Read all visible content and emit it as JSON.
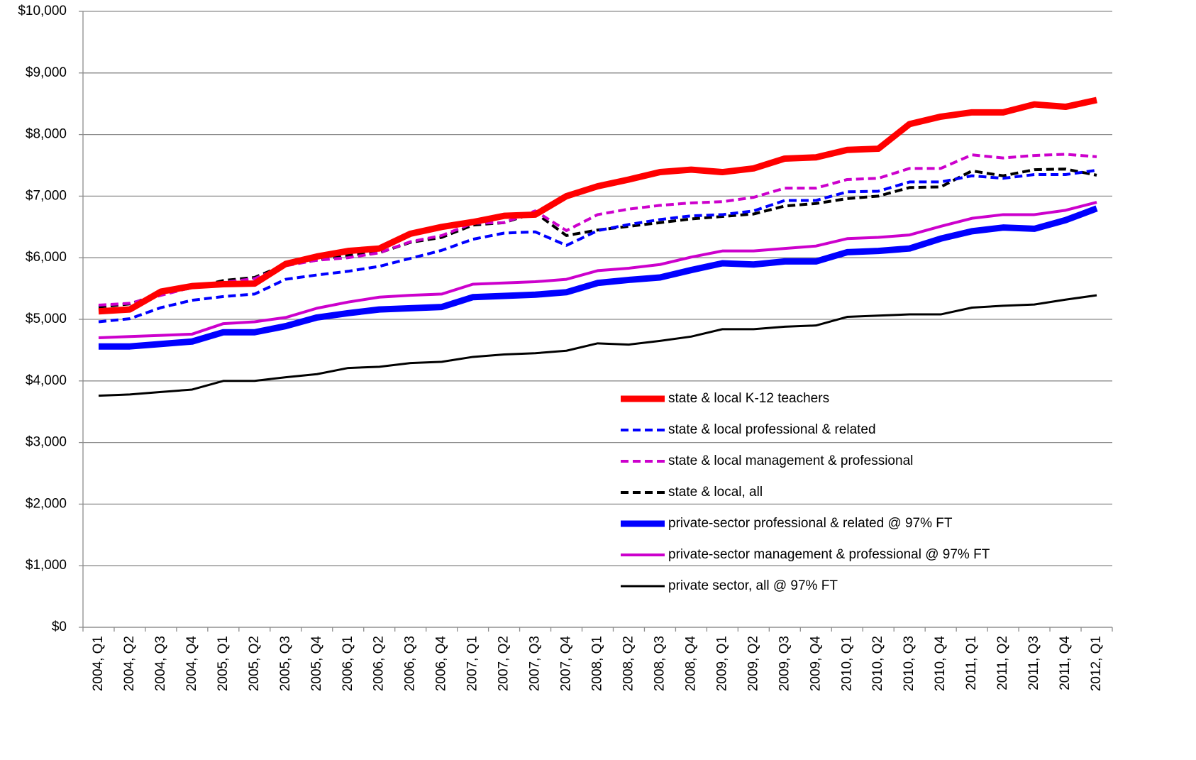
{
  "chart_data": {
    "type": "line",
    "categories": [
      "2004, Q1",
      "2004, Q2",
      "2004, Q3",
      "2004, Q4",
      "2005, Q1",
      "2005, Q2",
      "2005, Q3",
      "2005, Q4",
      "2006, Q1",
      "2006, Q2",
      "2006, Q3",
      "2006, Q4",
      "2007, Q1",
      "2007, Q2",
      "2007, Q3",
      "2007, Q4",
      "2008, Q1",
      "2008, Q2",
      "2008, Q3",
      "2008, Q4",
      "2009, Q1",
      "2009, Q2",
      "2009, Q3",
      "2009, Q4",
      "2010, Q1",
      "2010, Q2",
      "2010, Q3",
      "2010, Q4",
      "2011, Q1",
      "2011, Q2",
      "2011, Q3",
      "2011, Q4",
      "2012, Q1"
    ],
    "series": [
      {
        "name": "state & local K-12 teachers",
        "color": "#ff0000",
        "style": "thick",
        "values": [
          5130,
          5160,
          5450,
          5540,
          5570,
          5580,
          5900,
          6020,
          6110,
          6150,
          6390,
          6500,
          6580,
          6680,
          6700,
          7000,
          7160,
          7270,
          7390,
          7430,
          7390,
          7450,
          7610,
          7630,
          7750,
          7770,
          8170,
          8290,
          8360,
          8360,
          8490,
          8450,
          8560
        ]
      },
      {
        "name": "state & local professional & related",
        "color": "#0000ff",
        "style": "dashed",
        "values": [
          4960,
          5010,
          5190,
          5310,
          5370,
          5410,
          5650,
          5720,
          5780,
          5860,
          5990,
          6120,
          6300,
          6400,
          6420,
          6200,
          6440,
          6540,
          6620,
          6680,
          6700,
          6760,
          6930,
          6930,
          7070,
          7080,
          7230,
          7230,
          7330,
          7290,
          7350,
          7350,
          7420
        ]
      },
      {
        "name": "state & local management  & professional",
        "color": "#cc00cc",
        "style": "dashed",
        "values": [
          5230,
          5260,
          5390,
          5520,
          5600,
          5660,
          5870,
          5960,
          6000,
          6080,
          6260,
          6360,
          6560,
          6570,
          6760,
          6440,
          6700,
          6790,
          6850,
          6890,
          6910,
          6980,
          7130,
          7130,
          7270,
          7290,
          7450,
          7450,
          7670,
          7620,
          7660,
          7680,
          7640
        ]
      },
      {
        "name": "state & local, all",
        "color": "#000000",
        "style": "dashed",
        "values": [
          5200,
          5250,
          5420,
          5510,
          5630,
          5680,
          5890,
          5960,
          6040,
          6080,
          6250,
          6330,
          6530,
          6570,
          6730,
          6360,
          6450,
          6510,
          6570,
          6630,
          6670,
          6710,
          6840,
          6880,
          6960,
          7000,
          7140,
          7150,
          7410,
          7330,
          7430,
          7440,
          7340
        ]
      },
      {
        "name": "private-sector professional & related @ 97%  FT",
        "color": "#0000ff",
        "style": "thick",
        "values": [
          4560,
          4560,
          4600,
          4640,
          4790,
          4790,
          4890,
          5030,
          5100,
          5160,
          5180,
          5200,
          5360,
          5380,
          5400,
          5440,
          5590,
          5640,
          5680,
          5800,
          5910,
          5890,
          5940,
          5940,
          6090,
          6110,
          6150,
          6310,
          6430,
          6490,
          6470,
          6610,
          6800
        ]
      },
      {
        "name": "private-sector management  & professional @ 97%  FT",
        "color": "#cc00cc",
        "style": "medium",
        "values": [
          4700,
          4720,
          4740,
          4760,
          4930,
          4960,
          5030,
          5180,
          5280,
          5360,
          5390,
          5410,
          5570,
          5590,
          5610,
          5650,
          5790,
          5830,
          5890,
          6010,
          6110,
          6110,
          6150,
          6190,
          6310,
          6330,
          6370,
          6510,
          6640,
          6700,
          6700,
          6770,
          6900
        ]
      },
      {
        "name": "private sector, all @  97%  FT",
        "color": "#000000",
        "style": "thin",
        "values": [
          3760,
          3780,
          3820,
          3860,
          4000,
          4000,
          4060,
          4110,
          4210,
          4230,
          4290,
          4310,
          4390,
          4430,
          4450,
          4490,
          4610,
          4590,
          4650,
          4720,
          4840,
          4840,
          4880,
          4900,
          5040,
          5060,
          5080,
          5080,
          5190,
          5220,
          5240,
          5320,
          5390
        ]
      }
    ],
    "ylim": [
      0,
      10000
    ],
    "yticks": [
      {
        "value": 0,
        "label": "$0"
      },
      {
        "value": 1000,
        "label": "$1,000"
      },
      {
        "value": 2000,
        "label": "$2,000"
      },
      {
        "value": 3000,
        "label": "$3,000"
      },
      {
        "value": 4000,
        "label": "$4,000"
      },
      {
        "value": 5000,
        "label": "$5,000"
      },
      {
        "value": 6000,
        "label": "$6,000"
      },
      {
        "value": 7000,
        "label": "$7,000"
      },
      {
        "value": 8000,
        "label": "$8,000"
      },
      {
        "value": 9000,
        "label": "$9,000"
      },
      {
        "value": 10000,
        "label": "$10,000"
      }
    ],
    "grid": true,
    "legend": "right"
  }
}
